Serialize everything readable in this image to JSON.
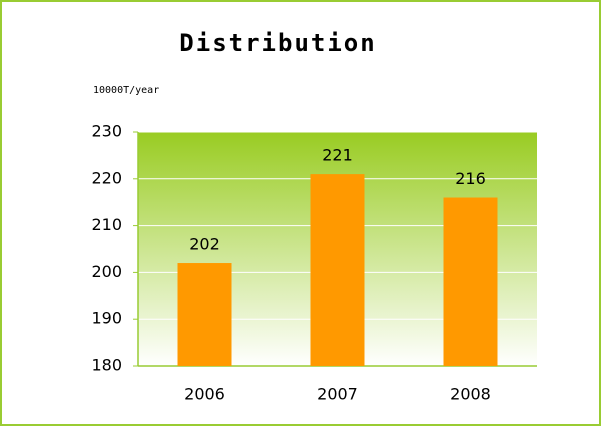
{
  "chart_data": {
    "type": "bar",
    "title": "Distribution",
    "y_label": "10000T/year",
    "categories": [
      "2006",
      "2007",
      "2008"
    ],
    "values": [
      202,
      221,
      216
    ],
    "color": "#ff9900",
    "ylim": [
      180,
      230
    ],
    "yticks": [
      180,
      190,
      200,
      210,
      220,
      230
    ],
    "grid": true
  }
}
